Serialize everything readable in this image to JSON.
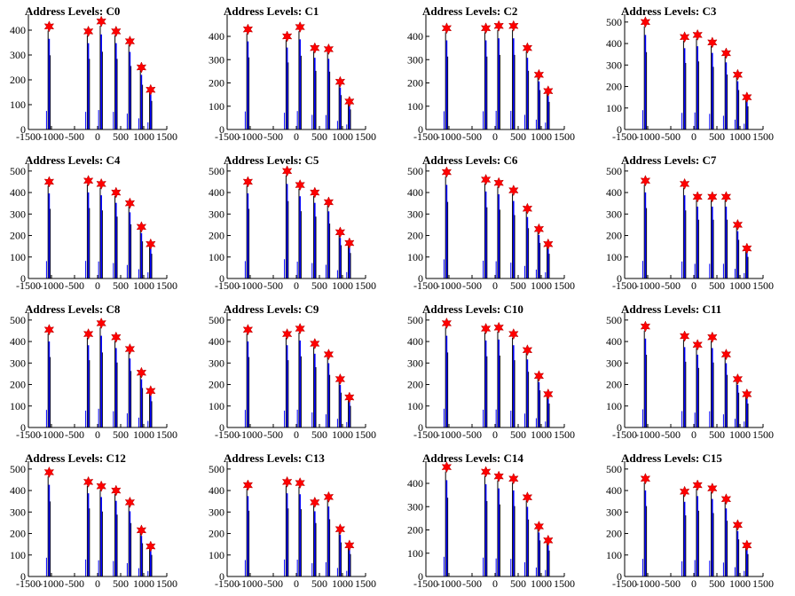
{
  "figure": {
    "title_prefix": "Address Levels:",
    "x_ticks": [
      -1500,
      -1000,
      -500,
      0,
      500,
      1000,
      1500
    ],
    "x_tick_labels": [
      "-1500",
      "-1000",
      "-500",
      "0",
      "500",
      "1000",
      "1500"
    ],
    "colors": {
      "background": "#ffffff",
      "histogram": "#0000ff",
      "marker": "#ff0000",
      "axis": "#000000"
    }
  },
  "chart_data": [
    {
      "type": "bar",
      "title": "C0",
      "ylim": [
        0,
        450
      ],
      "yticks": [
        0,
        100,
        200,
        300,
        400
      ],
      "peaks": {
        "x": [
          -1050,
          -200,
          80,
          400,
          700,
          950,
          1150
        ],
        "y": [
          415,
          395,
          435,
          395,
          355,
          250,
          160
        ]
      }
    },
    {
      "type": "bar",
      "title": "C1",
      "ylim": [
        0,
        480
      ],
      "yticks": [
        0,
        100,
        200,
        300,
        400
      ],
      "peaks": {
        "x": [
          -1050,
          -200,
          80,
          400,
          700,
          950,
          1150
        ],
        "y": [
          430,
          400,
          440,
          350,
          345,
          205,
          120
        ]
      }
    },
    {
      "type": "bar",
      "title": "C2",
      "ylim": [
        0,
        480
      ],
      "yticks": [
        0,
        100,
        200,
        300,
        400
      ],
      "peaks": {
        "x": [
          -1050,
          -200,
          80,
          400,
          700,
          950,
          1150
        ],
        "y": [
          435,
          435,
          445,
          445,
          350,
          235,
          165
        ]
      }
    },
    {
      "type": "bar",
      "title": "C3",
      "ylim": [
        0,
        520
      ],
      "yticks": [
        0,
        100,
        200,
        300,
        400,
        500
      ],
      "peaks": {
        "x": [
          -1050,
          -200,
          80,
          400,
          700,
          950,
          1150
        ],
        "y": [
          500,
          430,
          440,
          405,
          355,
          255,
          150
        ]
      }
    },
    {
      "type": "bar",
      "title": "C4",
      "ylim": [
        0,
        520
      ],
      "yticks": [
        0,
        100,
        200,
        300,
        400,
        500
      ],
      "peaks": {
        "x": [
          -1050,
          -200,
          80,
          400,
          700,
          950,
          1150
        ],
        "y": [
          450,
          455,
          440,
          400,
          350,
          240,
          160
        ]
      }
    },
    {
      "type": "bar",
      "title": "C5",
      "ylim": [
        0,
        520
      ],
      "yticks": [
        0,
        100,
        200,
        300,
        400,
        500
      ],
      "peaks": {
        "x": [
          -1050,
          -200,
          80,
          400,
          700,
          950,
          1150
        ],
        "y": [
          450,
          500,
          435,
          400,
          355,
          215,
          165
        ]
      }
    },
    {
      "type": "bar",
      "title": "C6",
      "ylim": [
        0,
        520
      ],
      "yticks": [
        0,
        100,
        200,
        300,
        400,
        500
      ],
      "peaks": {
        "x": [
          -1050,
          -200,
          80,
          400,
          700,
          950,
          1150
        ],
        "y": [
          495,
          460,
          445,
          410,
          325,
          230,
          160
        ]
      }
    },
    {
      "type": "bar",
      "title": "C7",
      "ylim": [
        0,
        520
      ],
      "yticks": [
        0,
        100,
        200,
        300,
        400,
        500
      ],
      "peaks": {
        "x": [
          -1050,
          -200,
          80,
          400,
          700,
          950,
          1150
        ],
        "y": [
          455,
          440,
          380,
          380,
          380,
          250,
          140
        ]
      }
    },
    {
      "type": "bar",
      "title": "C8",
      "ylim": [
        0,
        520
      ],
      "yticks": [
        0,
        100,
        200,
        300,
        400,
        500
      ],
      "peaks": {
        "x": [
          -1050,
          -200,
          80,
          400,
          700,
          950,
          1150
        ],
        "y": [
          455,
          435,
          485,
          420,
          365,
          255,
          170
        ]
      }
    },
    {
      "type": "bar",
      "title": "C9",
      "ylim": [
        0,
        520
      ],
      "yticks": [
        0,
        100,
        200,
        300,
        400,
        500
      ],
      "peaks": {
        "x": [
          -1050,
          -200,
          80,
          400,
          700,
          950,
          1150
        ],
        "y": [
          455,
          435,
          460,
          390,
          340,
          225,
          140
        ]
      }
    },
    {
      "type": "bar",
      "title": "C10",
      "ylim": [
        0,
        520
      ],
      "yticks": [
        0,
        100,
        200,
        300,
        400,
        500
      ],
      "peaks": {
        "x": [
          -1050,
          -200,
          80,
          400,
          700,
          950,
          1150
        ],
        "y": [
          485,
          460,
          465,
          435,
          360,
          240,
          155
        ]
      }
    },
    {
      "type": "bar",
      "title": "C11",
      "ylim": [
        0,
        520
      ],
      "yticks": [
        0,
        100,
        200,
        300,
        400,
        500
      ],
      "peaks": {
        "x": [
          -1050,
          -200,
          80,
          400,
          700,
          950,
          1150
        ],
        "y": [
          470,
          425,
          385,
          420,
          340,
          225,
          155
        ]
      }
    },
    {
      "type": "bar",
      "title": "C12",
      "ylim": [
        0,
        520
      ],
      "yticks": [
        0,
        100,
        200,
        300,
        400,
        500
      ],
      "peaks": {
        "x": [
          -1050,
          -200,
          80,
          400,
          700,
          950,
          1150
        ],
        "y": [
          485,
          440,
          420,
          400,
          345,
          215,
          140
        ]
      }
    },
    {
      "type": "bar",
      "title": "C13",
      "ylim": [
        0,
        520
      ],
      "yticks": [
        0,
        100,
        200,
        300,
        400,
        500
      ],
      "peaks": {
        "x": [
          -1050,
          -200,
          80,
          400,
          700,
          950,
          1150
        ],
        "y": [
          425,
          440,
          435,
          345,
          370,
          220,
          145
        ]
      }
    },
    {
      "type": "bar",
      "title": "C14",
      "ylim": [
        0,
        480
      ],
      "yticks": [
        0,
        100,
        200,
        300,
        400
      ],
      "peaks": {
        "x": [
          -1050,
          -200,
          80,
          400,
          700,
          950,
          1150
        ],
        "y": [
          470,
          450,
          430,
          420,
          340,
          215,
          155
        ]
      }
    },
    {
      "type": "bar",
      "title": "C15",
      "ylim": [
        0,
        520
      ],
      "yticks": [
        0,
        100,
        200,
        300,
        400,
        500
      ],
      "peaks": {
        "x": [
          -1050,
          -200,
          80,
          400,
          700,
          950,
          1150
        ],
        "y": [
          455,
          395,
          425,
          410,
          360,
          240,
          145
        ]
      }
    }
  ]
}
